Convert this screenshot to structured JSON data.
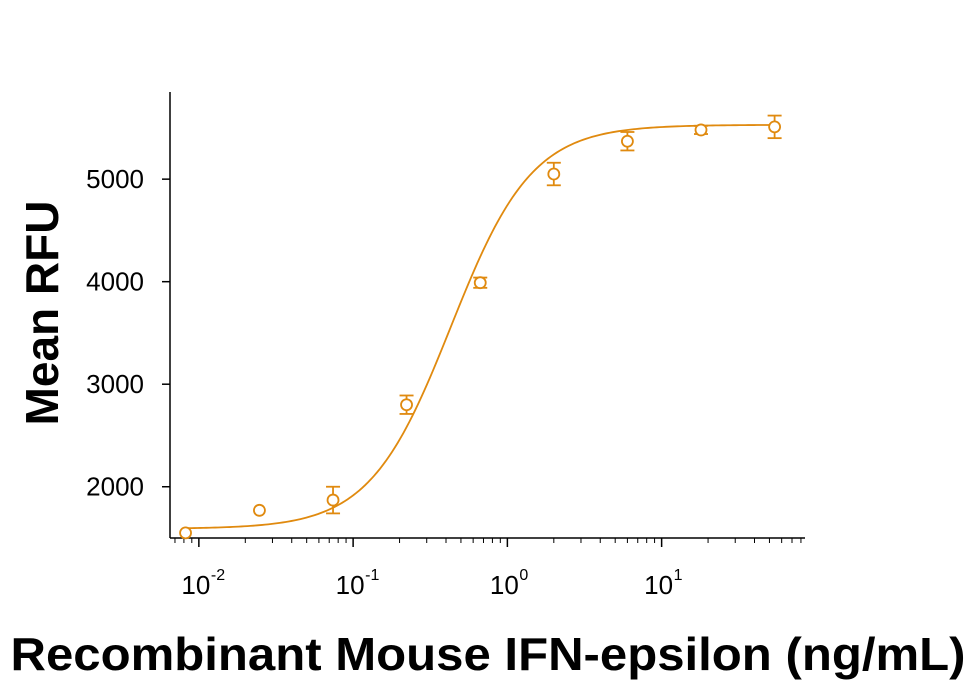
{
  "chart_data": {
    "type": "scatter",
    "title": "",
    "xlabel": "Recombinant Mouse IFN-epsilon (ng/mL)",
    "ylabel": "Mean RFU",
    "xscale": "log",
    "xlim": [
      0.0065,
      85
    ],
    "ylim": [
      1500,
      5850
    ],
    "grid": false,
    "legend": "none",
    "series_color": "#e08a0f",
    "x_ticks": [
      {
        "value": 0.01,
        "base": "10",
        "exp": "-2"
      },
      {
        "value": 0.1,
        "base": "10",
        "exp": "-1"
      },
      {
        "value": 1,
        "base": "10",
        "exp": "0"
      },
      {
        "value": 10,
        "base": "10",
        "exp": "1"
      }
    ],
    "y_ticks": [
      {
        "value": 2000,
        "label": "2000"
      },
      {
        "value": 3000,
        "label": "3000"
      },
      {
        "value": 4000,
        "label": "4000"
      },
      {
        "value": 5000,
        "label": "5000"
      }
    ],
    "series": [
      {
        "points": [
          {
            "x": 0.0082,
            "y": 1550,
            "err": 0
          },
          {
            "x": 0.0247,
            "y": 1770,
            "err": 0
          },
          {
            "x": 0.0741,
            "y": 1870,
            "err": 130
          },
          {
            "x": 0.222,
            "y": 2800,
            "err": 90
          },
          {
            "x": 0.667,
            "y": 3990,
            "err": 50
          },
          {
            "x": 2.0,
            "y": 5050,
            "err": 110
          },
          {
            "x": 6.0,
            "y": 5370,
            "err": 90
          },
          {
            "x": 18.0,
            "y": 5480,
            "err": 40
          },
          {
            "x": 54.0,
            "y": 5510,
            "err": 110
          }
        ],
        "fit": {
          "model": "4PL",
          "bottom": 1590,
          "top": 5530,
          "ec50": 0.43,
          "hill": 1.65
        }
      }
    ]
  }
}
